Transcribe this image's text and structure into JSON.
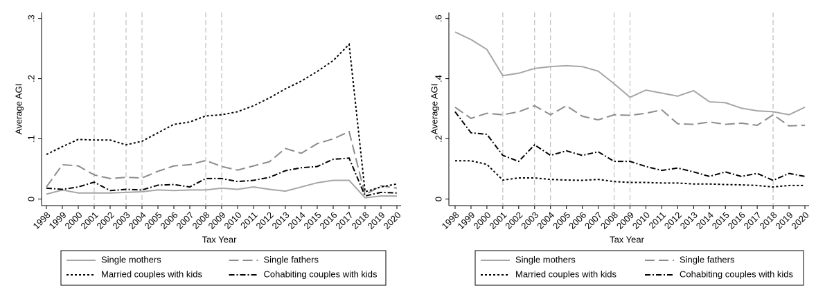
{
  "chart_data": [
    {
      "type": "line",
      "y_label": "Average AGI",
      "x_label": "Tax Year",
      "x": [
        1998,
        1999,
        2000,
        2001,
        2002,
        2003,
        2004,
        2005,
        2006,
        2007,
        2008,
        2009,
        2010,
        2011,
        2012,
        2013,
        2014,
        2015,
        2016,
        2017,
        2018,
        2019,
        2020
      ],
      "xlim": [
        1998,
        2020
      ],
      "xticks": [
        1998,
        1999,
        2000,
        2001,
        2002,
        2003,
        2004,
        2005,
        2006,
        2007,
        2008,
        2009,
        2010,
        2011,
        2012,
        2013,
        2014,
        2015,
        2016,
        2017,
        2018,
        2019,
        2020
      ],
      "ylim": [
        -0.011,
        0.31
      ],
      "yticks": [
        0,
        {
          "value": 0.1,
          "label": ".1"
        },
        {
          "value": 0.2,
          "label": ".2"
        },
        {
          "value": 0.3,
          "label": ".3"
        }
      ],
      "xlines": [
        2001,
        2003,
        2004,
        2008,
        2009
      ],
      "series": [
        {
          "name": "Single mothers",
          "color": "#a6a6a6",
          "dash": "solid",
          "values": [
            0.008,
            0.015,
            0.01,
            0.01,
            0.01,
            0.011,
            0.012,
            0.015,
            0.014,
            0.015,
            0.015,
            0.018,
            0.016,
            0.02,
            0.016,
            0.013,
            0.02,
            0.027,
            0.031,
            0.031,
            0.002,
            0.005,
            0.005
          ]
        },
        {
          "name": "Single fathers",
          "color": "#8c8c8c",
          "dash": "longdash",
          "values": [
            0.02,
            0.057,
            0.055,
            0.04,
            0.034,
            0.036,
            0.035,
            0.046,
            0.055,
            0.057,
            0.064,
            0.054,
            0.048,
            0.055,
            0.062,
            0.084,
            0.076,
            0.092,
            0.1,
            0.112,
            0.007,
            0.022,
            0.018
          ]
        },
        {
          "name": "Married couples with kids",
          "color": "#000000",
          "dash": "dot",
          "values": [
            0.074,
            0.087,
            0.099,
            0.098,
            0.098,
            0.09,
            0.096,
            0.11,
            0.124,
            0.128,
            0.138,
            0.14,
            0.145,
            0.155,
            0.168,
            0.183,
            0.196,
            0.212,
            0.23,
            0.257,
            0.012,
            0.02,
            0.025
          ]
        },
        {
          "name": "Cohabiting couples with kids",
          "color": "#000000",
          "dash": "dashdot",
          "values": [
            0.018,
            0.016,
            0.02,
            0.028,
            0.014,
            0.016,
            0.015,
            0.023,
            0.024,
            0.02,
            0.034,
            0.034,
            0.029,
            0.031,
            0.036,
            0.047,
            0.052,
            0.054,
            0.066,
            0.068,
            0.005,
            0.011,
            0.01
          ]
        }
      ]
    },
    {
      "type": "line",
      "y_label": "Average AGI",
      "x_label": "Tax Year",
      "x": [
        1998,
        1999,
        2000,
        2001,
        2002,
        2003,
        2004,
        2005,
        2006,
        2007,
        2008,
        2009,
        2010,
        2011,
        2012,
        2013,
        2014,
        2015,
        2016,
        2017,
        2018,
        2019,
        2020
      ],
      "xlim": [
        1998,
        2020
      ],
      "xticks": [
        1998,
        1999,
        2000,
        2001,
        2002,
        2003,
        2004,
        2005,
        2006,
        2007,
        2008,
        2009,
        2010,
        2011,
        2012,
        2013,
        2014,
        2015,
        2016,
        2017,
        2018,
        2019,
        2020
      ],
      "ylim": [
        -0.022,
        0.62
      ],
      "yticks": [
        0,
        {
          "value": 0.2,
          "label": ".2"
        },
        {
          "value": 0.4,
          "label": ".4"
        },
        {
          "value": 0.6,
          "label": ".6"
        }
      ],
      "xlines": [
        2001,
        2003,
        2004,
        2008,
        2009,
        2018
      ],
      "series": [
        {
          "name": "Single mothers",
          "color": "#a6a6a6",
          "dash": "solid",
          "values": [
            0.555,
            0.53,
            0.497,
            0.41,
            0.418,
            0.434,
            0.44,
            0.443,
            0.44,
            0.425,
            0.383,
            0.338,
            0.362,
            0.352,
            0.342,
            0.36,
            0.323,
            0.32,
            0.302,
            0.293,
            0.29,
            0.28,
            0.305
          ]
        },
        {
          "name": "Single fathers",
          "color": "#8c8c8c",
          "dash": "longdash",
          "values": [
            0.305,
            0.268,
            0.285,
            0.28,
            0.29,
            0.31,
            0.28,
            0.31,
            0.275,
            0.263,
            0.28,
            0.278,
            0.285,
            0.296,
            0.25,
            0.248,
            0.256,
            0.248,
            0.252,
            0.245,
            0.28,
            0.243,
            0.245
          ]
        },
        {
          "name": "Married couples with kids",
          "color": "#000000",
          "dash": "dot",
          "values": [
            0.127,
            0.127,
            0.115,
            0.063,
            0.07,
            0.07,
            0.065,
            0.063,
            0.062,
            0.065,
            0.058,
            0.055,
            0.055,
            0.053,
            0.053,
            0.05,
            0.05,
            0.048,
            0.047,
            0.045,
            0.04,
            0.045,
            0.045
          ]
        },
        {
          "name": "Cohabiting couples with kids",
          "color": "#000000",
          "dash": "dashdot",
          "values": [
            0.29,
            0.22,
            0.215,
            0.145,
            0.125,
            0.18,
            0.145,
            0.16,
            0.145,
            0.157,
            0.125,
            0.125,
            0.108,
            0.095,
            0.103,
            0.09,
            0.075,
            0.09,
            0.075,
            0.085,
            0.062,
            0.085,
            0.075
          ]
        }
      ]
    }
  ]
}
